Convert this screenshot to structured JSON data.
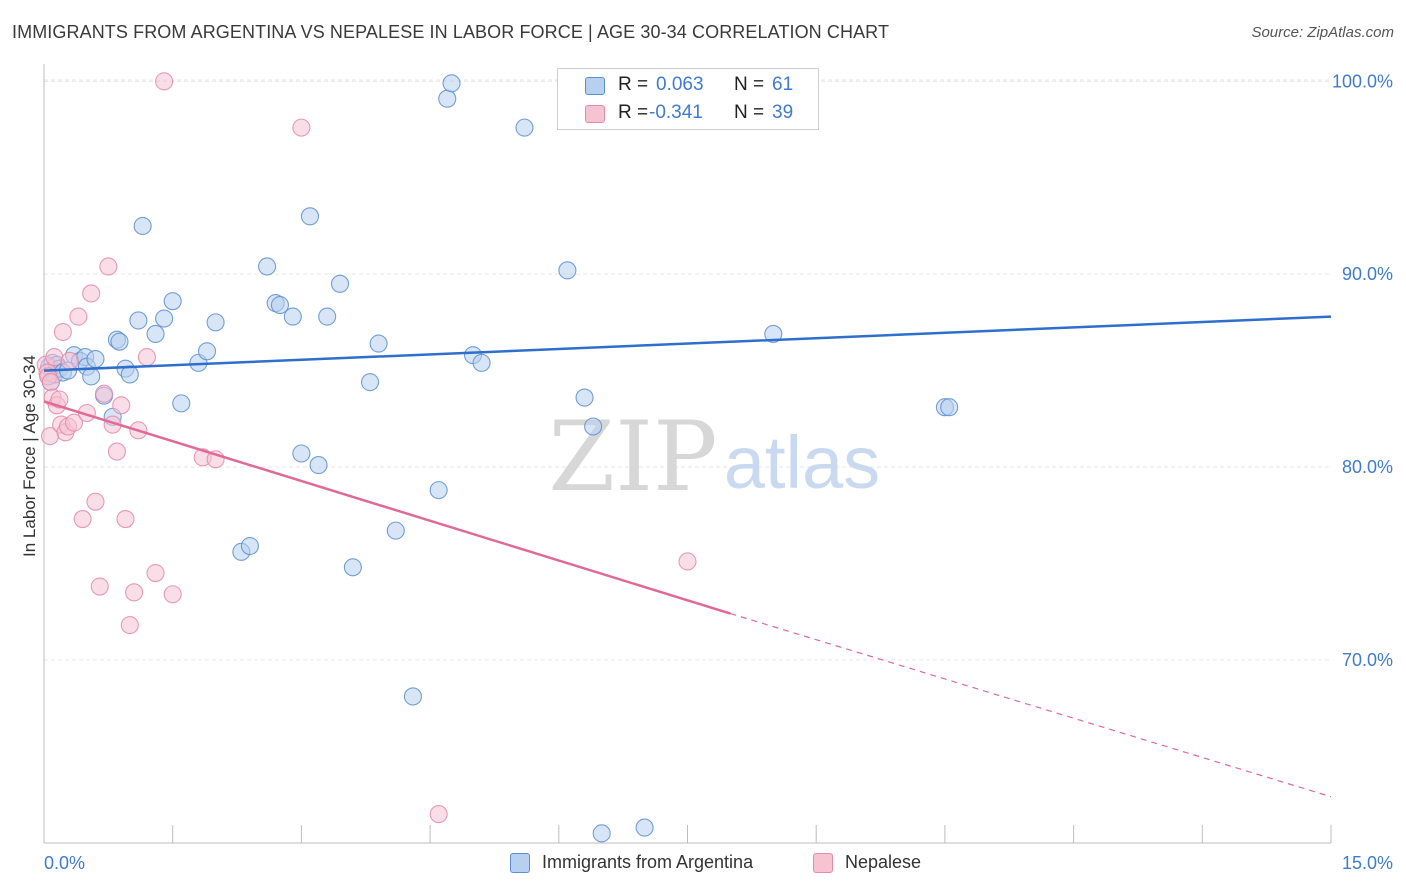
{
  "title": "IMMIGRANTS FROM ARGENTINA VS NEPALESE IN LABOR FORCE | AGE 30-34 CORRELATION CHART",
  "source": "Source: ZipAtlas.com",
  "watermark": {
    "zip": "ZIP",
    "atlas": "atlas"
  },
  "colors": {
    "blue_fill": "#b8d0ef",
    "blue_stroke": "#5b8fd0",
    "blue_line": "#2d6fcb",
    "pink_fill": "#f6c3d3",
    "pink_stroke": "#e58aa8",
    "pink_line": "#e06a96",
    "value_text": "#3f7bd1",
    "grid": "#e6e6e6"
  },
  "legend": {
    "rows": [
      {
        "r_label": "R =",
        "r_value": "0.063",
        "n_label": "N =",
        "n_value": "61"
      },
      {
        "r_label": "R =",
        "r_value": "-0.341",
        "n_label": "N =",
        "n_value": "39"
      }
    ]
  },
  "bottom_legend": {
    "series1": "Immigrants from Argentina",
    "series2": "Nepalese"
  },
  "chart_data": {
    "type": "scatter",
    "title": "IMMIGRANTS FROM ARGENTINA VS NEPALESE IN LABOR FORCE | AGE 30-34 CORRELATION CHART",
    "xlabel": "",
    "ylabel": "In Labor Force | Age 30-34",
    "xlim": [
      0,
      15
    ],
    "ylim": [
      60.5,
      100.9
    ],
    "x_tick_labels": [
      "0.0%",
      "15.0%"
    ],
    "y_ticks": [
      70,
      80,
      90,
      100
    ],
    "y_tick_labels": [
      "70.0%",
      "80.0%",
      "90.0%",
      "100.0%"
    ],
    "grid": true,
    "series": [
      {
        "name": "Immigrants from Argentina",
        "color": "#5b8fd0",
        "x": [
          0.05,
          0.06,
          0.08,
          0.1,
          0.12,
          0.15,
          0.18,
          0.22,
          0.28,
          0.35,
          0.42,
          0.48,
          0.5,
          0.55,
          0.6,
          0.7,
          0.8,
          0.85,
          0.88,
          0.95,
          1.0,
          1.1,
          1.15,
          1.3,
          1.4,
          1.5,
          1.6,
          1.8,
          1.9,
          2.0,
          2.3,
          2.4,
          2.6,
          2.7,
          2.75,
          2.9,
          3.0,
          3.1,
          3.2,
          3.3,
          3.45,
          3.6,
          3.8,
          3.9,
          4.1,
          4.3,
          4.6,
          4.7,
          4.75,
          5.0,
          5.1,
          5.6,
          6.1,
          6.3,
          6.4,
          6.5,
          7.0,
          7.1,
          8.5,
          10.5,
          10.55
        ],
        "y": [
          84.7,
          85.2,
          84.4,
          85.4,
          84.8,
          85.3,
          85.1,
          84.9,
          85.0,
          85.8,
          85.5,
          85.7,
          85.2,
          84.7,
          85.6,
          83.7,
          82.6,
          86.6,
          86.5,
          85.1,
          84.8,
          87.6,
          92.5,
          86.9,
          87.7,
          88.6,
          83.3,
          85.4,
          86.0,
          87.5,
          75.6,
          75.9,
          90.4,
          88.5,
          88.4,
          87.8,
          80.7,
          93.0,
          80.1,
          87.8,
          89.5,
          74.8,
          84.4,
          86.4,
          76.7,
          68.1,
          78.8,
          99.1,
          99.9,
          85.8,
          85.4,
          97.6,
          90.2,
          83.6,
          82.1,
          61.0,
          61.3,
          99.9,
          86.9,
          83.1,
          83.1
        ]
      },
      {
        "name": "Nepalese",
        "color": "#e58aa8",
        "x": [
          0.02,
          0.04,
          0.05,
          0.07,
          0.08,
          0.1,
          0.12,
          0.15,
          0.18,
          0.2,
          0.22,
          0.25,
          0.28,
          0.3,
          0.35,
          0.4,
          0.45,
          0.5,
          0.55,
          0.6,
          0.65,
          0.7,
          0.75,
          0.8,
          0.85,
          0.9,
          0.95,
          1.0,
          1.05,
          1.1,
          1.2,
          1.3,
          1.4,
          1.5,
          1.85,
          2.0,
          3.0,
          4.6,
          7.5
        ],
        "y": [
          85.3,
          84.9,
          84.7,
          81.6,
          84.4,
          83.6,
          85.7,
          83.2,
          83.5,
          82.2,
          87.0,
          81.8,
          82.1,
          85.5,
          82.3,
          87.8,
          77.3,
          82.8,
          89.0,
          78.2,
          73.8,
          83.8,
          90.4,
          82.2,
          80.8,
          83.2,
          77.3,
          71.8,
          73.5,
          81.9,
          85.7,
          74.5,
          100.0,
          73.4,
          80.5,
          80.4,
          97.6,
          62.0,
          75.1
        ]
      }
    ],
    "trend_lines": [
      {
        "series": "Immigrants from Argentina",
        "x0": 0,
        "y0": 85.0,
        "x1": 15,
        "y1": 87.8
      },
      {
        "series": "Nepalese",
        "x0": 0,
        "y0": 83.4,
        "x1": 8.0,
        "y1": 72.4,
        "dashed_to_x": 15,
        "dashed_to_y": 62.9
      }
    ]
  }
}
